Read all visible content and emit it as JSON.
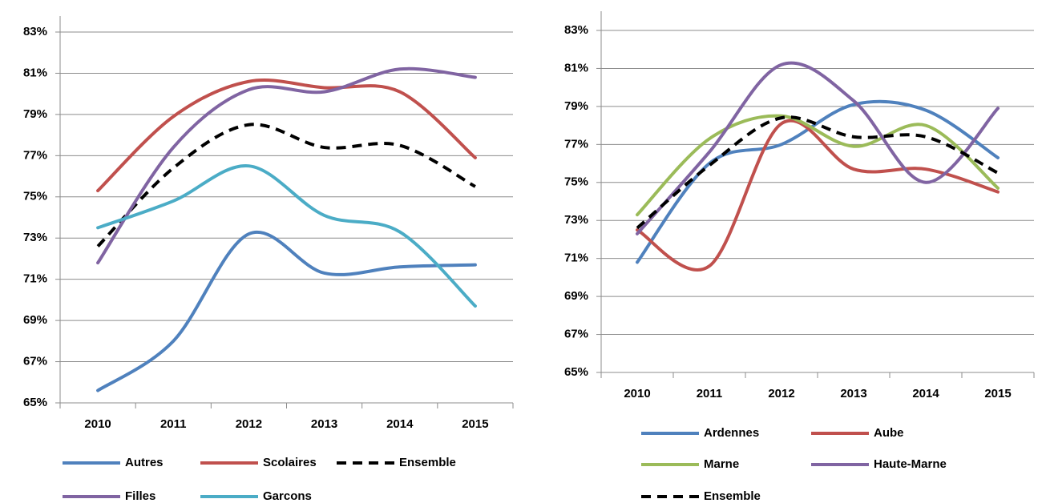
{
  "chart_data": [
    {
      "type": "line",
      "categories": [
        "2010",
        "2011",
        "2012",
        "2013",
        "2014",
        "2015"
      ],
      "ylim": [
        65,
        83
      ],
      "yticks": [
        {
          "value": 65,
          "label": "65%"
        },
        {
          "value": 67,
          "label": "67%"
        },
        {
          "value": 69,
          "label": "69%"
        },
        {
          "value": 71,
          "label": "71%"
        },
        {
          "value": 73,
          "label": "73%"
        },
        {
          "value": 75,
          "label": "75%"
        },
        {
          "value": 77,
          "label": "77%"
        },
        {
          "value": 79,
          "label": "79%"
        },
        {
          "value": 81,
          "label": "81%"
        },
        {
          "value": 83,
          "label": "83%"
        }
      ],
      "grid": true,
      "series": [
        {
          "name": "Autres",
          "color": "#4f81bd",
          "values": [
            65.6,
            68.0,
            73.2,
            71.3,
            71.6,
            71.7
          ]
        },
        {
          "name": "Scolaires",
          "color": "#c0504d",
          "values": [
            75.3,
            78.9,
            80.6,
            80.3,
            80.1,
            76.9
          ]
        },
        {
          "name": "Ensemble",
          "color": "#000000",
          "dashed": true,
          "values": [
            72.6,
            76.4,
            78.5,
            77.4,
            77.5,
            75.5
          ]
        },
        {
          "name": "Filles",
          "color": "#8064a2",
          "values": [
            71.8,
            77.4,
            80.2,
            80.1,
            81.2,
            80.8
          ]
        },
        {
          "name": "Garcons",
          "color": "#4bacc6",
          "values": [
            73.5,
            74.8,
            76.5,
            74.1,
            73.3,
            69.7
          ]
        }
      ]
    },
    {
      "type": "line",
      "categories": [
        "2010",
        "2011",
        "2012",
        "2013",
        "2014",
        "2015"
      ],
      "ylim": [
        65,
        83
      ],
      "yticks": [
        {
          "value": 65,
          "label": "65%"
        },
        {
          "value": 67,
          "label": "67%"
        },
        {
          "value": 69,
          "label": "69%"
        },
        {
          "value": 71,
          "label": "71%"
        },
        {
          "value": 73,
          "label": "73%"
        },
        {
          "value": 75,
          "label": "75%"
        },
        {
          "value": 77,
          "label": "77%"
        },
        {
          "value": 79,
          "label": "79%"
        },
        {
          "value": 81,
          "label": "81%"
        },
        {
          "value": 83,
          "label": "83%"
        }
      ],
      "grid": true,
      "series": [
        {
          "name": "Ardennes",
          "color": "#4f81bd",
          "values": [
            70.8,
            76.0,
            77.0,
            79.1,
            78.8,
            76.3
          ]
        },
        {
          "name": "Aube",
          "color": "#c0504d",
          "values": [
            72.5,
            70.6,
            78.1,
            75.7,
            75.7,
            74.5
          ]
        },
        {
          "name": "Marne",
          "color": "#9bbb59",
          "values": [
            73.3,
            77.3,
            78.5,
            76.9,
            78.0,
            74.7
          ]
        },
        {
          "name": "Haute-Marne",
          "color": "#8064a2",
          "values": [
            72.3,
            76.6,
            81.2,
            79.3,
            75.0,
            78.9
          ]
        },
        {
          "name": "Ensemble",
          "color": "#000000",
          "dashed": true,
          "values": [
            72.6,
            75.9,
            78.4,
            77.4,
            77.4,
            75.5
          ]
        }
      ]
    }
  ]
}
